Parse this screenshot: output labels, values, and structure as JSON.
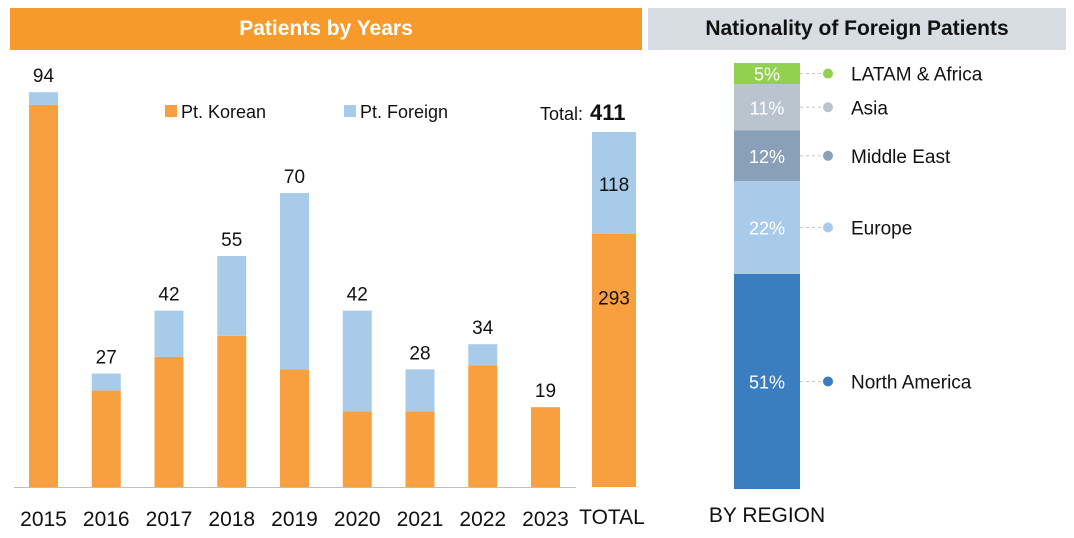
{
  "headers": {
    "left": "Patients by Years",
    "right": "Nationality of Foreign Patients"
  },
  "colors": {
    "korean": "#f8a03f",
    "foreign": "#a9cbea",
    "header_left": "#f59a2b",
    "header_right": "#d8dde3"
  },
  "chart_data": [
    {
      "type": "bar",
      "stacked": true,
      "categories": [
        "2015",
        "2016",
        "2017",
        "2018",
        "2019",
        "2020",
        "2021",
        "2022",
        "2023"
      ],
      "series": [
        {
          "name": "Pt. Korean",
          "values": [
            91,
            23,
            31,
            36,
            28,
            18,
            18,
            29,
            19
          ]
        },
        {
          "name": "Pt. Foreign",
          "values": [
            3,
            4,
            11,
            19,
            42,
            24,
            10,
            5,
            0
          ]
        }
      ],
      "totals": [
        94,
        27,
        42,
        55,
        70,
        42,
        28,
        34,
        19
      ],
      "total_bar": {
        "label": "TOTAL",
        "korean": 293,
        "foreign": 118
      },
      "total_label": "Total:",
      "total_value": 411,
      "ylim": [
        0,
        100
      ],
      "legend_position": "top"
    },
    {
      "type": "bar",
      "stacked": true,
      "percent": true,
      "categories": [
        "BY REGION"
      ],
      "segments": [
        {
          "name": "North America",
          "pct_label": "51%",
          "value": 51,
          "color": "#3a7ebf"
        },
        {
          "name": "Europe",
          "pct_label": "22%",
          "value": 22,
          "color": "#a9cbea"
        },
        {
          "name": "Middle East",
          "pct_label": "12%",
          "value": 12,
          "color": "#8a9fb8"
        },
        {
          "name": "Asia",
          "pct_label": "11%",
          "value": 11,
          "color": "#b9c4cf"
        },
        {
          "name": "LATAM & Africa",
          "pct_label": "5%",
          "value": 5,
          "color": "#92d050"
        }
      ]
    }
  ]
}
